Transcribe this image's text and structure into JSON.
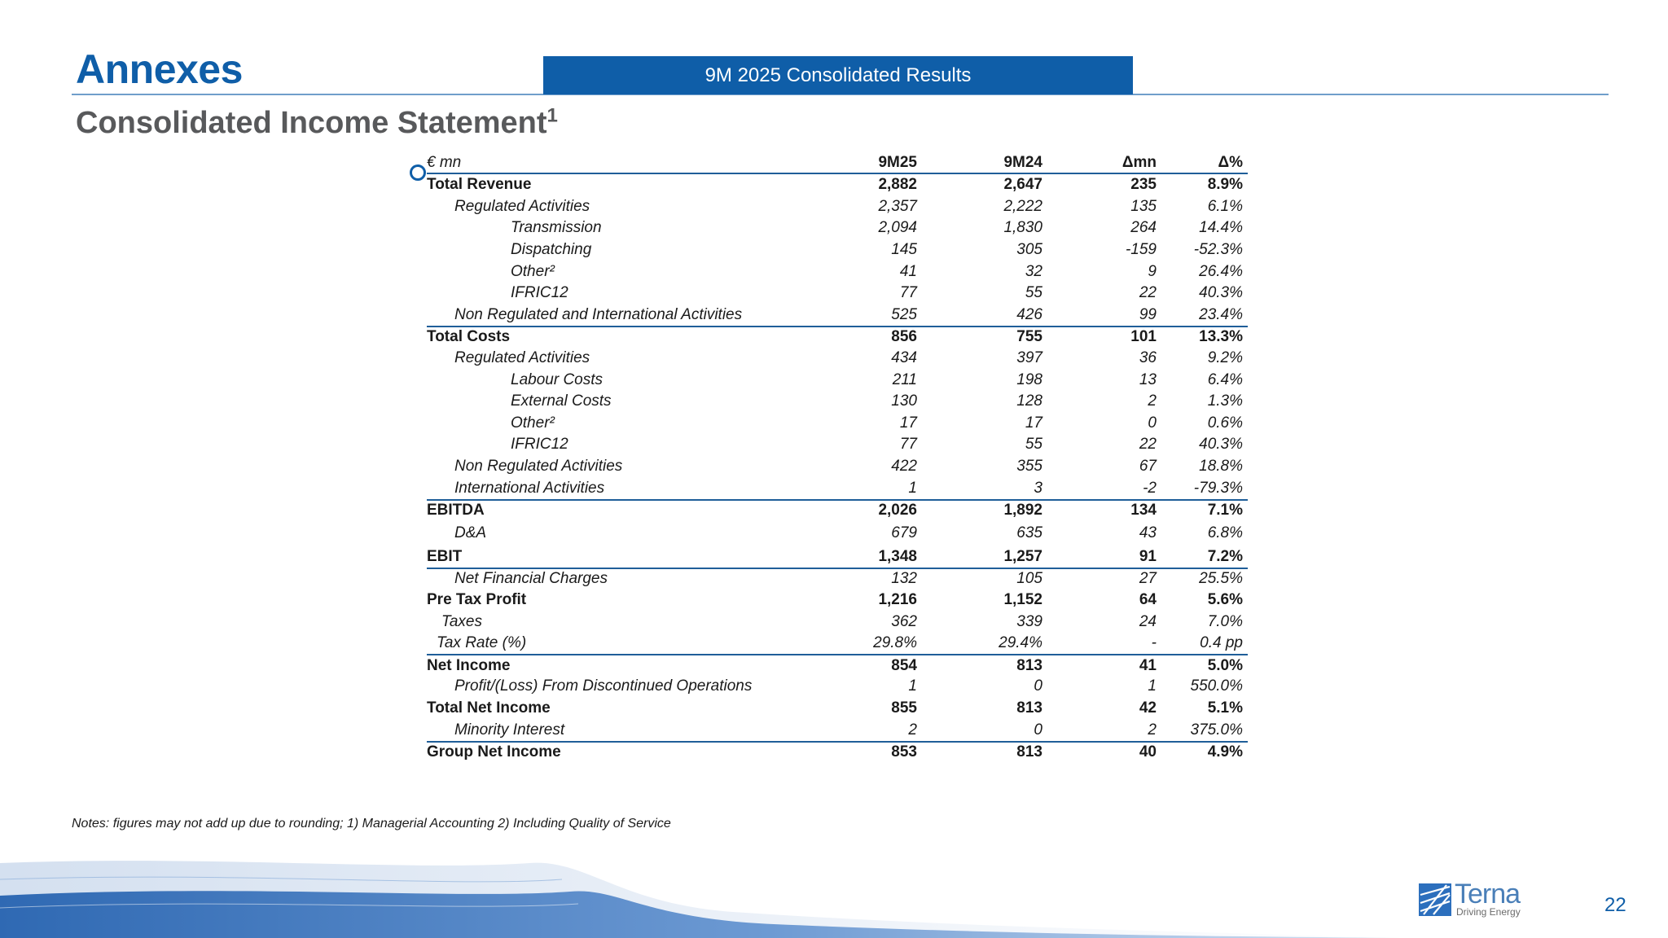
{
  "header": {
    "section_title": "Annexes",
    "banner": "9M 2025 Consolidated Results",
    "page_title": "Consolidated Income Statement",
    "page_title_sup": "1"
  },
  "table": {
    "columns": [
      "€ mn",
      "9M25",
      "9M24",
      "Δmn",
      "Δ%"
    ],
    "rows": [
      {
        "label": "Total Revenue",
        "v": [
          "2,882",
          "2,647",
          "235",
          "8.9%"
        ]
      },
      {
        "label": "Regulated Activities",
        "v": [
          "2,357",
          "2,222",
          "135",
          "6.1%"
        ]
      },
      {
        "label": "Transmission",
        "v": [
          "2,094",
          "1,830",
          "264",
          "14.4%"
        ]
      },
      {
        "label": "Dispatching",
        "v": [
          "145",
          "305",
          "-159",
          "-52.3%"
        ]
      },
      {
        "label": "Other²",
        "v": [
          "41",
          "32",
          "9",
          "26.4%"
        ]
      },
      {
        "label": "IFRIC12",
        "v": [
          "77",
          "55",
          "22",
          "40.3%"
        ]
      },
      {
        "label": "Non Regulated and International Activities",
        "v": [
          "525",
          "426",
          "99",
          "23.4%"
        ]
      },
      {
        "label": "Total Costs",
        "v": [
          "856",
          "755",
          "101",
          "13.3%"
        ]
      },
      {
        "label": "Regulated Activities",
        "v": [
          "434",
          "397",
          "36",
          "9.2%"
        ]
      },
      {
        "label": "Labour Costs",
        "v": [
          "211",
          "198",
          "13",
          "6.4%"
        ]
      },
      {
        "label": "External Costs",
        "v": [
          "130",
          "128",
          "2",
          "1.3%"
        ]
      },
      {
        "label": "Other²",
        "v": [
          "17",
          "17",
          "0",
          "0.6%"
        ]
      },
      {
        "label": "IFRIC12",
        "v": [
          "77",
          "55",
          "22",
          "40.3%"
        ]
      },
      {
        "label": "Non Regulated Activities",
        "v": [
          "422",
          "355",
          "67",
          "18.8%"
        ]
      },
      {
        "label": "International Activities",
        "v": [
          "1",
          "3",
          "-2",
          "-79.3%"
        ]
      },
      {
        "label": "EBITDA",
        "v": [
          "2,026",
          "1,892",
          "134",
          "7.1%"
        ]
      },
      {
        "label": "D&A",
        "v": [
          "679",
          "635",
          "43",
          "6.8%"
        ]
      },
      {
        "label": "EBIT",
        "v": [
          "1,348",
          "1,257",
          "91",
          "7.2%"
        ]
      },
      {
        "label": "Net Financial Charges",
        "v": [
          "132",
          "105",
          "27",
          "25.5%"
        ]
      },
      {
        "label": "Pre Tax Profit",
        "v": [
          "1,216",
          "1,152",
          "64",
          "5.6%"
        ]
      },
      {
        "label": "Taxes",
        "v": [
          "362",
          "339",
          "24",
          "7.0%"
        ]
      },
      {
        "label": "Tax Rate (%)",
        "v": [
          "29.8%",
          "29.4%",
          "-",
          "0.4 pp"
        ]
      },
      {
        "label": "Net Income",
        "v": [
          "854",
          "813",
          "41",
          "5.0%"
        ]
      },
      {
        "label": "Profit/(Loss) From Discontinued Operations",
        "v": [
          "1",
          "0",
          "1",
          "550.0%"
        ]
      },
      {
        "label": "Total Net Income",
        "v": [
          "855",
          "813",
          "42",
          "5.1%"
        ]
      },
      {
        "label": "Minority Interest",
        "v": [
          "2",
          "0",
          "2",
          "375.0%"
        ]
      },
      {
        "label": "Group Net Income",
        "v": [
          "853",
          "813",
          "40",
          "4.9%"
        ]
      }
    ]
  },
  "notes": "Notes: figures may not add up due to rounding; 1) Managerial Accounting 2) Including Quality of Service",
  "logo": {
    "name": "Terna",
    "tagline": "Driving Energy"
  },
  "page_number": "22",
  "colors": {
    "brand_blue": "#0f5ea8",
    "rule_blue": "#1f5e99",
    "subtitle_gray": "#58595b"
  }
}
